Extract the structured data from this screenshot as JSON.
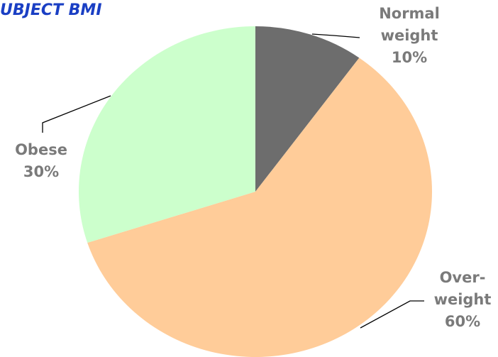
{
  "chart_data": {
    "type": "pie",
    "title": "UBJECT BMI",
    "categories": [
      "Normal weight",
      "Over-weight",
      "Obese"
    ],
    "values": [
      10,
      60,
      30
    ],
    "value_labels": [
      "10%",
      "60%",
      "30%"
    ],
    "colors": [
      "#6d6d6d",
      "#ffcc99",
      "#ccffcc"
    ]
  }
}
